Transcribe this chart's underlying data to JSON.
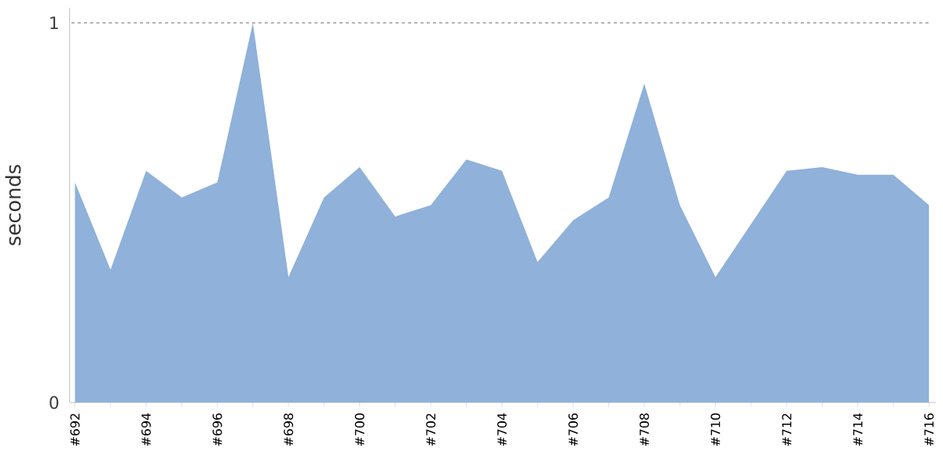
{
  "chart_data": {
    "type": "area",
    "ylabel": "seconds",
    "categories": [
      "#692",
      null,
      "#694",
      null,
      "#696",
      null,
      "#698",
      null,
      "#700",
      null,
      "#702",
      null,
      "#704",
      null,
      "#706",
      null,
      "#708",
      null,
      "#710",
      null,
      "#712",
      null,
      "#714",
      null,
      "#716"
    ],
    "series": [
      {
        "color": "#8fb1da",
        "values": [
          0.58,
          0.35,
          0.61,
          0.54,
          0.58,
          1.0,
          0.33,
          0.54,
          0.62,
          0.49,
          0.52,
          0.64,
          0.61,
          0.37,
          0.48,
          0.54,
          0.84,
          0.52,
          0.33,
          0.47,
          0.61,
          0.62,
          0.6,
          0.6,
          0.52
        ]
      }
    ],
    "ylim": [
      0,
      1.04
    ],
    "yticks": [
      0,
      1
    ],
    "ref_lines": [
      {
        "axis": "y",
        "value": 1,
        "color": "#888888",
        "line_style": "dashed"
      }
    ]
  }
}
